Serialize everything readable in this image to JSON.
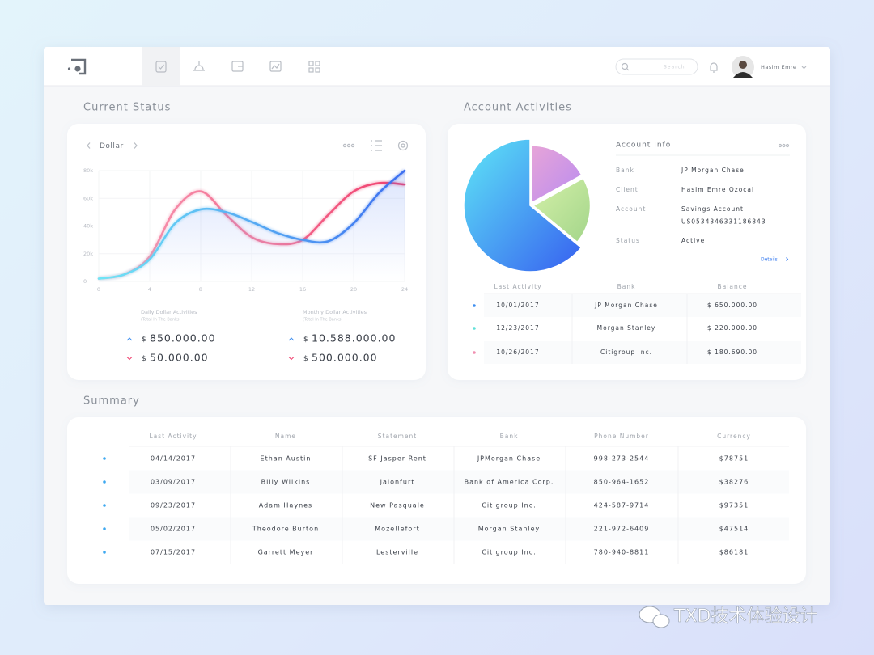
{
  "header": {
    "search_placeholder": "Search",
    "user_name": "Hasim Emre"
  },
  "current_status": {
    "title": "Current Status",
    "currency": "Dollar",
    "stats": [
      {
        "title": "Daily Dollar Activities",
        "subtitle": "(Total In The Banks)",
        "up": {
          "symbol": "$",
          "amount": "850.000.00"
        },
        "down": {
          "symbol": "$",
          "amount": "50.000.00"
        }
      },
      {
        "title": "Monthly Dollar Activities",
        "subtitle": "(Total In The Banks)",
        "up": {
          "symbol": "$",
          "amount": "10.588.000.00"
        },
        "down": {
          "symbol": "$",
          "amount": "500.000.00"
        }
      }
    ]
  },
  "chart_data": [
    {
      "type": "line",
      "x": [
        0,
        2,
        4,
        6,
        8,
        10,
        12,
        14,
        16,
        18,
        20,
        22,
        24
      ],
      "xlim": [
        0,
        24
      ],
      "xticks": [
        0,
        4,
        8,
        12,
        16,
        20,
        24
      ],
      "ylim": [
        0,
        80000
      ],
      "yticks": [
        0,
        {
          "value": 20000,
          "label": "20k"
        },
        {
          "value": 40000,
          "label": "40k"
        },
        {
          "value": 60000,
          "label": "60k"
        },
        {
          "value": 80000,
          "label": "80k"
        }
      ],
      "grid": true,
      "series": [
        {
          "gradient": [
            "#f7a0b8",
            "#f0406e"
          ],
          "values": [
            2000,
            5000,
            18000,
            52000,
            65000,
            48000,
            32000,
            27000,
            30000,
            48000,
            65000,
            71000,
            70000
          ]
        },
        {
          "gradient": [
            "#6fe6f6",
            "#3d6ff0"
          ],
          "fill": true,
          "values": [
            2000,
            5000,
            16000,
            42000,
            52000,
            50000,
            43000,
            35000,
            30000,
            29000,
            42000,
            64000,
            80000
          ]
        }
      ]
    },
    {
      "type": "pie",
      "title": "Account Activities",
      "values": [
        17,
        19,
        64
      ],
      "colors": [
        [
          "#e7a4d8",
          "#b98cf0"
        ],
        [
          "#d4f0a8",
          "#a3d58a"
        ],
        [
          "#5ee6f6",
          "#3760f0"
        ]
      ]
    }
  ],
  "account_info": {
    "title": "Account Info",
    "fields": [
      {
        "label": "Bank",
        "lines": [
          "JP Morgan Chase"
        ]
      },
      {
        "label": "Client",
        "lines": [
          "Hasim Emre Ozocal"
        ]
      },
      {
        "label": "Account",
        "lines": [
          "Savings Account",
          "US0534346331186843"
        ]
      },
      {
        "label": "Status",
        "lines": [
          "Active"
        ]
      }
    ],
    "details": "Details"
  },
  "activity_table": {
    "columns": [
      "Last Activity",
      "Bank",
      "Balance"
    ],
    "rows": [
      {
        "color": "#3d8ef0",
        "cells": [
          "10/01/2017",
          "JP Morgan Chase",
          "$ 650.000.00"
        ]
      },
      {
        "color": "#5fe0d8",
        "cells": [
          "12/23/2017",
          "Morgan Stanley",
          "$ 220.000.00"
        ]
      },
      {
        "color": "#f08fb0",
        "cells": [
          "10/26/2017",
          "Citigroup Inc.",
          "$ 180.690.00"
        ]
      }
    ]
  },
  "summary": {
    "title": "Summary",
    "columns": [
      "Last Activity",
      "Name",
      "Statement",
      "Bank",
      "Phone Number",
      "Currency"
    ],
    "rows": [
      [
        "04/14/2017",
        "Ethan Austin",
        "SF Jasper Rent",
        "JPMorgan Chase",
        "998-273-2544",
        "$78751"
      ],
      [
        "03/09/2017",
        "Billy Wilkins",
        "Jalonfurt",
        "Bank of America Corp.",
        "850-964-1652",
        "$38276"
      ],
      [
        "09/23/2017",
        "Adam Haynes",
        "New Pasquale",
        "Citigroup Inc.",
        "424-587-9714",
        "$97351"
      ],
      [
        "05/02/2017",
        "Theodore Burton",
        "Mozellefort",
        "Morgan Stanley",
        "221-972-6409",
        "$47514"
      ],
      [
        "07/15/2017",
        "Garrett Meyer",
        "Lesterville",
        "Citigroup Inc.",
        "780-940-8811",
        "$86181"
      ]
    ]
  },
  "watermark": "TXD技术体验设计"
}
